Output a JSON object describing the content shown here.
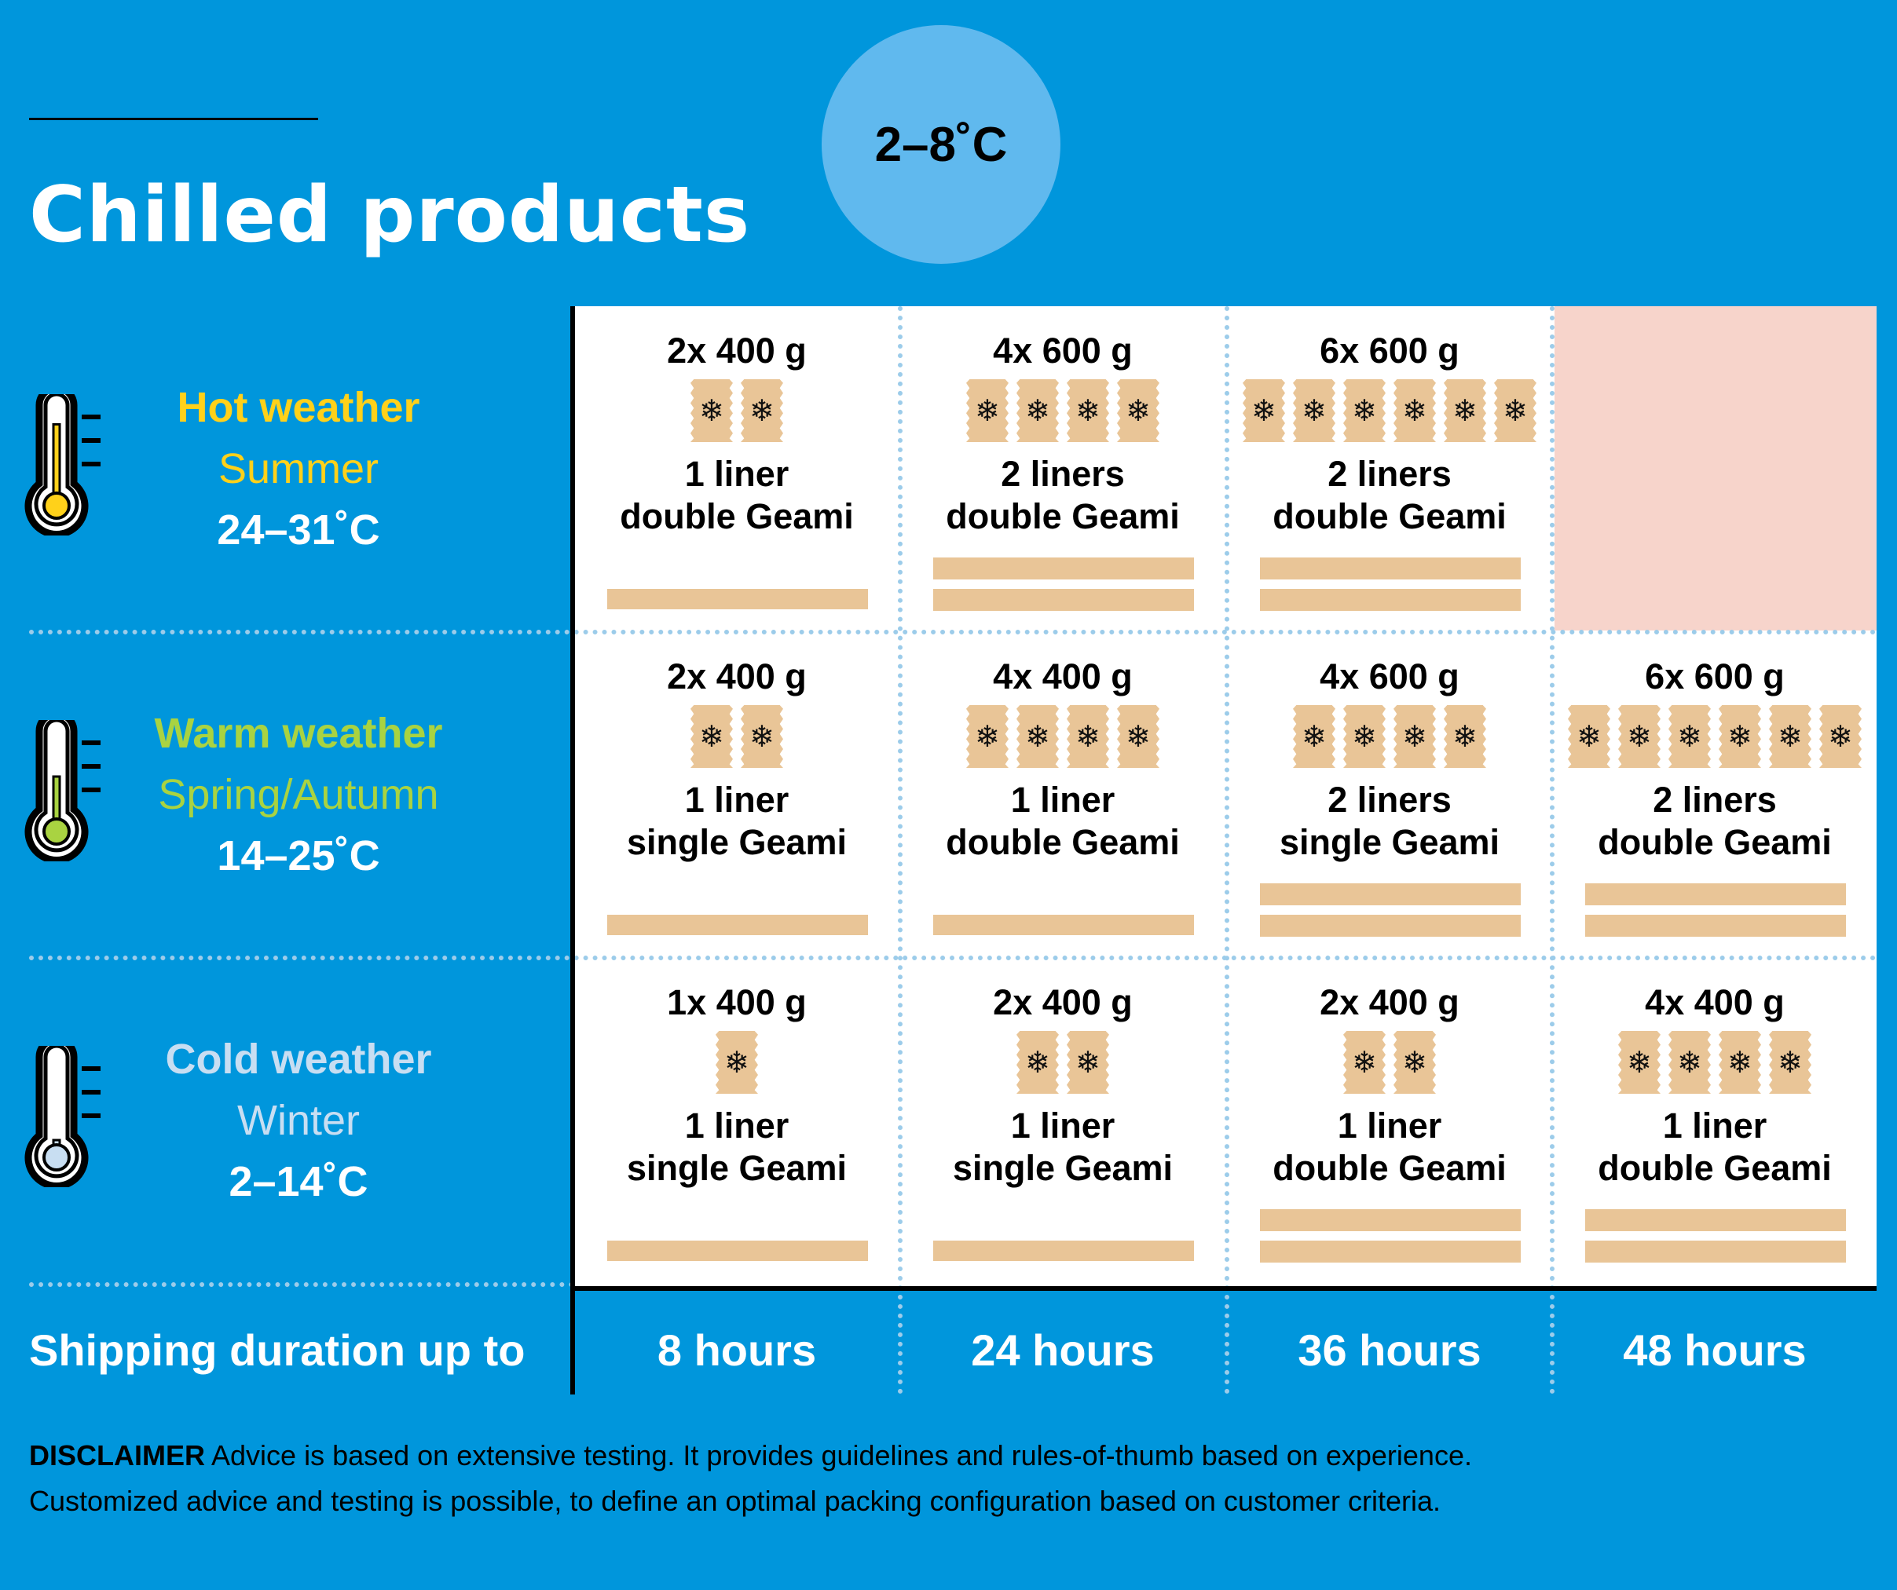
{
  "badge": "2–8˚C",
  "title": "Chilled products",
  "rows": [
    {
      "name": "Hot weather",
      "season": "Summer",
      "range": "24–31˚C",
      "color": "#FFD11A"
    },
    {
      "name": "Warm weather",
      "season": "Spring/Autumn",
      "range": "14–25˚C",
      "color": "#A9D341"
    },
    {
      "name": "Cold weather",
      "season": "Winter",
      "range": "2–14˚C",
      "color": "#C8DEF2"
    }
  ],
  "cells": [
    [
      {
        "amount": "2x 400 g",
        "packs": 2,
        "liners": "1 liner",
        "geami": "double Geami",
        "bars": 1
      },
      {
        "amount": "4x 600 g",
        "packs": 4,
        "liners": "2 liners",
        "geami": "double Geami",
        "bars": 2
      },
      {
        "amount": "6x 600 g",
        "packs": 6,
        "liners": "2 liners",
        "geami": "double Geami",
        "bars": 2
      },
      null
    ],
    [
      {
        "amount": "2x 400 g",
        "packs": 2,
        "liners": "1 liner",
        "geami": "single Geami",
        "bars": 1
      },
      {
        "amount": "4x 400 g",
        "packs": 4,
        "liners": "1 liner",
        "geami": "double Geami",
        "bars": 1
      },
      {
        "amount": "4x 600 g",
        "packs": 4,
        "liners": "2 liners",
        "geami": "single Geami",
        "bars": 2
      },
      {
        "amount": "6x 600 g",
        "packs": 6,
        "liners": "2 liners",
        "geami": "double Geami",
        "bars": 2
      }
    ],
    [
      {
        "amount": "1x 400 g",
        "packs": 1,
        "liners": "1 liner",
        "geami": "single Geami",
        "bars": 1
      },
      {
        "amount": "2x 400 g",
        "packs": 2,
        "liners": "1 liner",
        "geami": "single Geami",
        "bars": 1
      },
      {
        "amount": "2x 400 g",
        "packs": 2,
        "liners": "1 liner",
        "geami": "double Geami",
        "bars": 2
      },
      {
        "amount": "4x 400 g",
        "packs": 4,
        "liners": "1 liner",
        "geami": "double Geami",
        "bars": 2
      }
    ]
  ],
  "shipping_label": "Shipping duration up to",
  "durations": [
    "8 hours",
    "24 hours",
    "36 hours",
    "48 hours"
  ],
  "disclaimer": {
    "label": "DISCLAIMER",
    "line1": "Advice is based on extensive testing. It provides guidelines and rules-of-thumb based on experience.",
    "line2": "Customized advice and testing is possible, to define an optimal packing configuration based on customer criteria."
  },
  "icons": {
    "pack": "snowflake-icon",
    "thermometer": "thermometer-icon"
  },
  "colors": {
    "background": "#0096DC",
    "badge": "#60B9EE",
    "pack": "#E9C597",
    "unavailable": "#F7D4CB"
  }
}
